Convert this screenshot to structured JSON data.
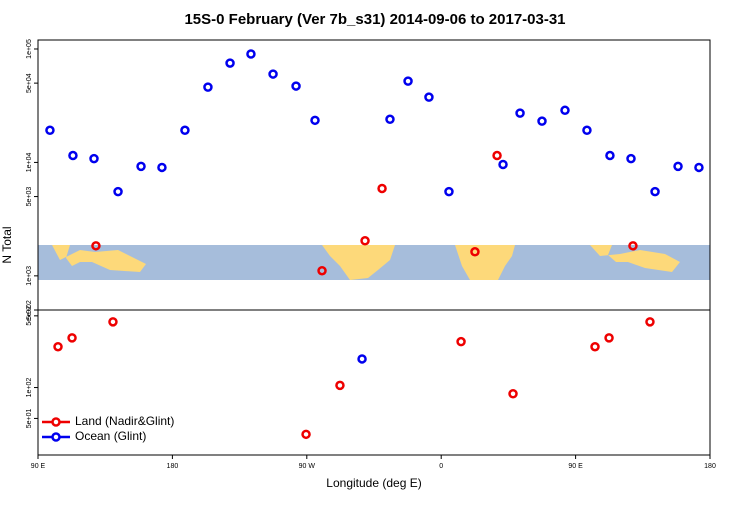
{
  "chart_data": [
    {
      "type": "scatter",
      "title": "15S-0 February (Ver 7b_s31)   2014-09-06 to 2017-03-31",
      "ylabel": "N Total",
      "log_y": true,
      "xlim": [
        90,
        540
      ],
      "ylim": [
        500,
        120000
      ],
      "yticks": [
        {
          "value": 100000,
          "label": "1e+05"
        },
        {
          "value": 50000,
          "label": "5e+04"
        },
        {
          "value": 10000,
          "label": "1e+04"
        },
        {
          "value": 5000,
          "label": "5e+03"
        },
        {
          "value": 1000,
          "label": "1e+03"
        },
        {
          "value": 500,
          "label": "5e+02"
        }
      ],
      "legend": "bottom-left",
      "series": [
        {
          "name": "Land (Nadir&Glint)",
          "color": "#ee0000",
          "x": [
            128.8,
            280.2,
            309,
            320.4,
            382.6,
            397.4,
            488.4
          ],
          "values": [
            1840,
            1110,
            2040,
            5890,
            1630,
            11500,
            1840
          ]
        },
        {
          "name": "Ocean (Glint)",
          "color": "#0000ee",
          "x": [
            98,
            113.4,
            127.5,
            143.6,
            159,
            173,
            188.4,
            203.8,
            218.6,
            232.6,
            247.4,
            262.8,
            275.5,
            325.7,
            337.8,
            351.8,
            365.2,
            401.4,
            412.8,
            427.5,
            442.9,
            457.6,
            473,
            487.1,
            503.2,
            518.6,
            532.6
          ],
          "values": [
            19200,
            11500,
            10800,
            5530,
            9230,
            9030,
            19200,
            46100,
            75100,
            90300,
            60100,
            47100,
            23500,
            24000,
            52100,
            37600,
            5530,
            9590,
            27200,
            23100,
            28800,
            19200,
            11500,
            10800,
            5530,
            9230,
            9030
          ]
        }
      ]
    },
    {
      "type": "scatter",
      "xlabel": "Longitude (deg E)",
      "log_y": true,
      "xlim": [
        90,
        540
      ],
      "ylim": [
        22,
        570
      ],
      "xticks": [
        {
          "value": 90,
          "label": "90 E"
        },
        180,
        {
          "value": 270,
          "label": "90 W"
        },
        {
          "value": 360,
          "label": "0"
        },
        {
          "value": 450,
          "label": "90 E"
        },
        {
          "value": 540,
          "label": "180"
        }
      ],
      "yticks": [
        {
          "value": 500,
          "label": "5e+02"
        },
        {
          "value": 100,
          "label": "1e+02"
        },
        {
          "value": 50,
          "label": "5e+01"
        }
      ],
      "series": [
        {
          "color": "#ee0000",
          "x": [
            103.4,
            112.8,
            140.2,
            269.5,
            292.2,
            373.3,
            408.1,
            463,
            472.4,
            499.8
          ],
          "values": [
            250,
            305,
            437,
            35,
            105,
            280,
            87,
            250,
            305,
            437
          ]
        },
        {
          "color": "#0000ee",
          "x": [
            307
          ],
          "values": [
            190
          ]
        }
      ]
    }
  ]
}
